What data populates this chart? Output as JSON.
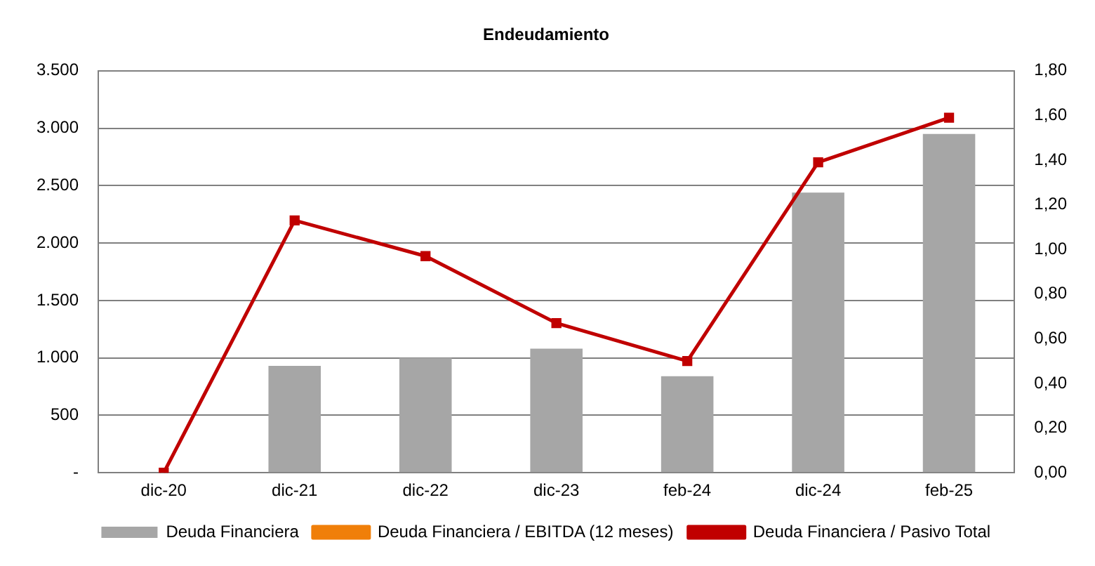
{
  "chart_data": {
    "type": "bar",
    "title": "Endeudamiento",
    "categories": [
      "dic-20",
      "dic-21",
      "dic-22",
      "dic-23",
      "feb-24",
      "dic-24",
      "feb-25"
    ],
    "series": [
      {
        "name": "Deuda Financiera",
        "color": "#a6a6a6",
        "values": [
          null,
          930,
          1000,
          1080,
          840,
          2440,
          2950
        ]
      },
      {
        "name": "Deuda Financiera / EBITDA (12 meses)",
        "type": "line",
        "axis": "y2",
        "color": "#f07f09",
        "values": [
          null,
          null,
          null,
          null,
          null,
          null,
          null
        ]
      },
      {
        "name": "Deuda Financiera / Pasivo Total",
        "type": "line",
        "axis": "y2",
        "color": "#c00000",
        "values": [
          0,
          1.13,
          0.97,
          0.67,
          0.5,
          1.39,
          1.59
        ]
      }
    ],
    "ylim": [
      0,
      3500
    ],
    "yticks": [
      {
        "value": 0,
        "label": "-"
      },
      {
        "value": 500,
        "label": "500"
      },
      {
        "value": 1000,
        "label": "1.000"
      },
      {
        "value": 1500,
        "label": "1.500"
      },
      {
        "value": 2000,
        "label": "2.000"
      },
      {
        "value": 2500,
        "label": "2.500"
      },
      {
        "value": 3000,
        "label": "3.000"
      },
      {
        "value": 3500,
        "label": "3.500"
      }
    ],
    "y2lim": [
      0,
      1.8
    ],
    "y2ticks": [
      {
        "value": 0,
        "label": "0,00"
      },
      {
        "value": 0.2,
        "label": "0,20"
      },
      {
        "value": 0.4,
        "label": "0,40"
      },
      {
        "value": 0.6,
        "label": "0,60"
      },
      {
        "value": 0.8,
        "label": "0,80"
      },
      {
        "value": 1,
        "label": "1,00"
      },
      {
        "value": 1.2,
        "label": "1,20"
      },
      {
        "value": 1.4,
        "label": "1,40"
      },
      {
        "value": 1.6,
        "label": "1,60"
      },
      {
        "value": 1.8,
        "label": "1,80"
      }
    ],
    "grid": "y",
    "legend": "bottom",
    "marker": "square",
    "line_style": "solid"
  }
}
